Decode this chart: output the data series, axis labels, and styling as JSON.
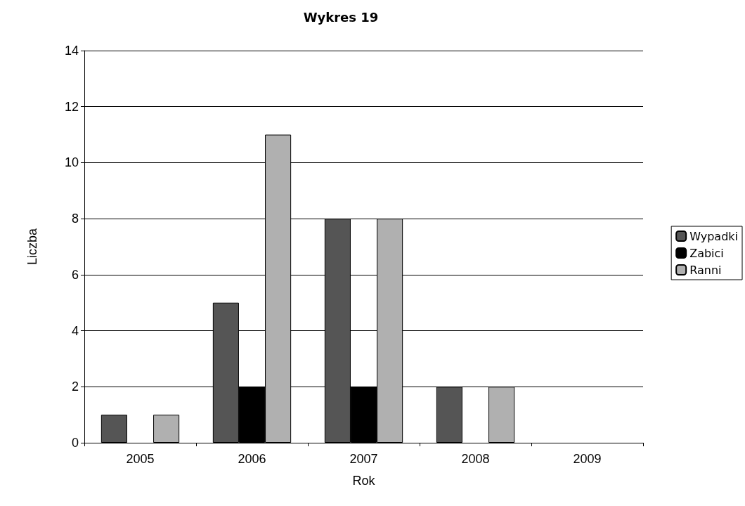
{
  "chart_data": {
    "type": "bar",
    "title": "Wykres 19",
    "xlabel": "Rok",
    "ylabel": "Liczba",
    "categories": [
      "2005",
      "2006",
      "2007",
      "2008",
      "2009"
    ],
    "series": [
      {
        "name": "Wypadki",
        "color": "#555555",
        "values": [
          1,
          5,
          8,
          2,
          0
        ]
      },
      {
        "name": "Zabici",
        "color": "#000000",
        "values": [
          0,
          2,
          2,
          0,
          0
        ]
      },
      {
        "name": "Ranni",
        "color": "#b0b0b0",
        "values": [
          1,
          11,
          8,
          2,
          0
        ]
      }
    ],
    "ylim": [
      0,
      14
    ],
    "yticks": [
      0,
      2,
      4,
      6,
      8,
      10,
      12,
      14
    ],
    "grid": "y",
    "legend": "right"
  }
}
